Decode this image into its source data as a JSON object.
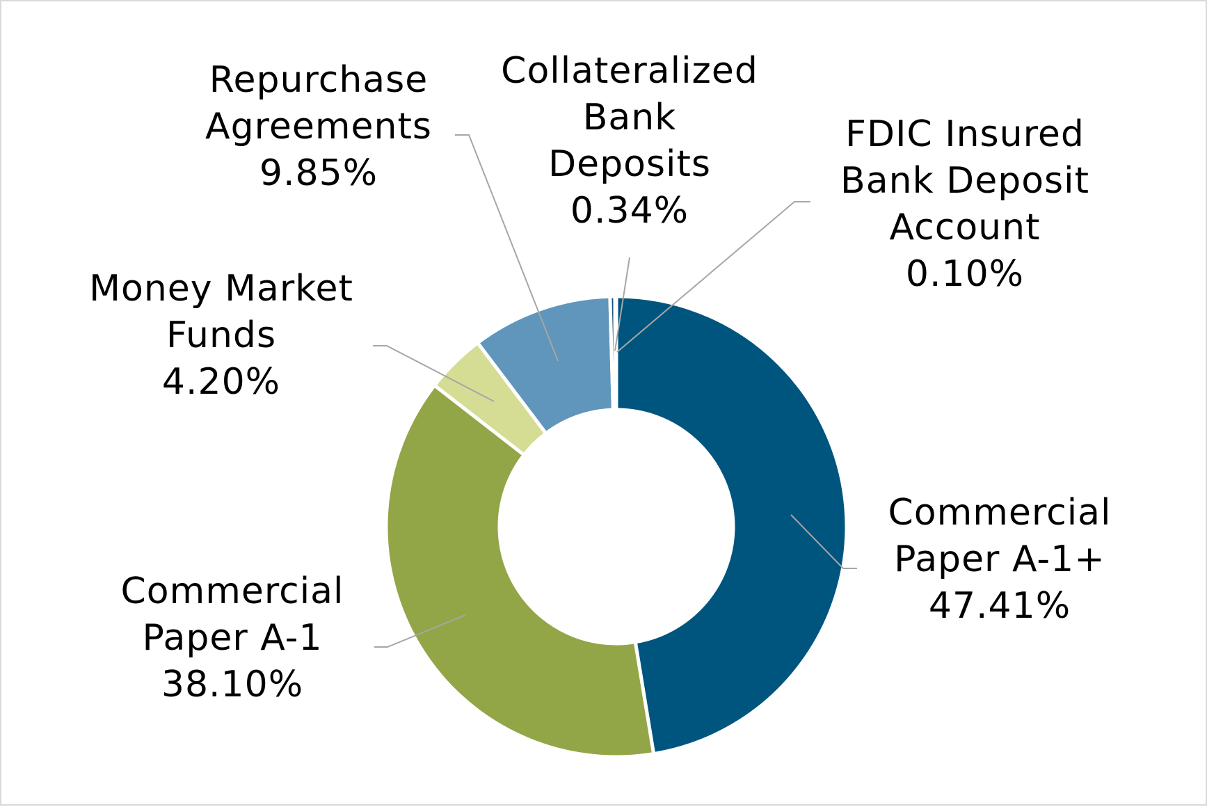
{
  "chart_data": {
    "type": "pie",
    "variant": "donut",
    "title": "",
    "legend": "none",
    "slices": [
      {
        "label_lines": [
          "Commercial",
          "Paper A-1+"
        ],
        "value": 47.41,
        "value_label": "47.41%",
        "color": "#00557f"
      },
      {
        "label_lines": [
          "Commercial",
          "Paper A-1"
        ],
        "value": 38.1,
        "value_label": "38.10%",
        "color": "#93a647"
      },
      {
        "label_lines": [
          "Money Market",
          "Funds"
        ],
        "value": 4.2,
        "value_label": "4.20%",
        "color": "#d5dd95"
      },
      {
        "label_lines": [
          "Repurchase",
          "Agreements"
        ],
        "value": 9.85,
        "value_label": "9.85%",
        "color": "#6096bb"
      },
      {
        "label_lines": [
          "Collateralized",
          "Bank",
          "Deposits"
        ],
        "value": 0.34,
        "value_label": "0.34%",
        "color": "#1f4e79"
      },
      {
        "label_lines": [
          "FDIC Insured",
          "Bank Deposit",
          "Account"
        ],
        "value": 0.1,
        "value_label": "0.10%",
        "color": "#7f7f7f"
      }
    ]
  },
  "colors": {
    "leader_line": "#a6a6a6",
    "separator": "#ffffff"
  }
}
